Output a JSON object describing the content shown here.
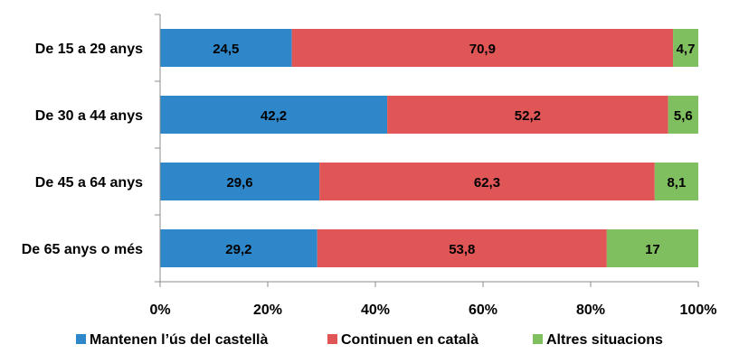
{
  "chart_data": {
    "type": "bar",
    "orientation": "horizontal",
    "stacked": "percent",
    "categories": [
      "De 15 a 29 anys",
      "De 30 a 44 anys",
      "De 45 a 64 anys",
      "De 65 anys o més"
    ],
    "series": [
      {
        "name": "Mantenen l’ús del castellà",
        "color": "#2e87c8",
        "values": [
          24.5,
          42.2,
          29.6,
          29.2
        ],
        "labels": [
          "24,5",
          "42,2",
          "29,6",
          "29,2"
        ]
      },
      {
        "name": "Continuen en català",
        "color": "#e05555",
        "values": [
          70.9,
          52.2,
          62.3,
          53.8
        ],
        "labels": [
          "70,9",
          "52,2",
          "62,3",
          "53,8"
        ]
      },
      {
        "name": "Altres situacions",
        "color": "#7fbf5f",
        "values": [
          4.7,
          5.6,
          8.1,
          17
        ],
        "labels": [
          "4,7",
          "5,6",
          "8,1",
          "17"
        ]
      }
    ],
    "xaxis": {
      "ticks": [
        "0%",
        "20%",
        "40%",
        "60%",
        "80%",
        "100%"
      ],
      "min": 0,
      "max": 100
    },
    "legend_position": "bottom",
    "grid": false
  }
}
